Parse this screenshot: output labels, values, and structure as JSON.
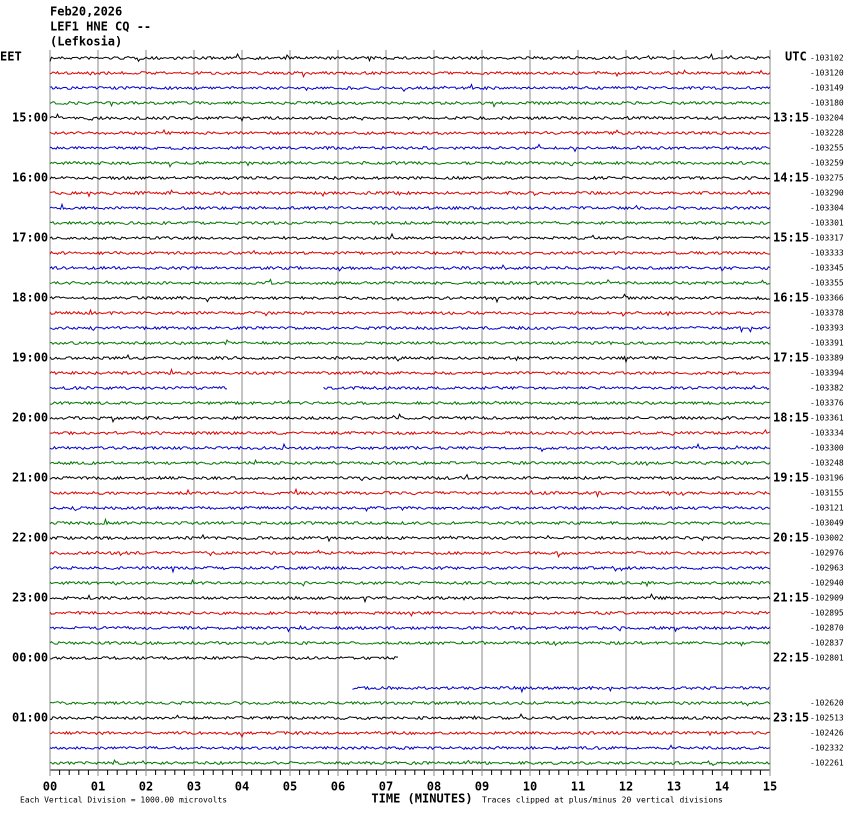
{
  "header": {
    "date": "Feb20,2026",
    "station": "LEF1 HNE CQ --",
    "location": "(Lefkosia)"
  },
  "left_axis_title": "EET",
  "right_axis_title": "UTC",
  "rows": [
    {
      "eet": null,
      "utc": null,
      "offset": -103102
    },
    {
      "eet": null,
      "utc": null,
      "offset": -103120
    },
    {
      "eet": null,
      "utc": null,
      "offset": -103149
    },
    {
      "eet": null,
      "utc": null,
      "offset": -103180
    },
    {
      "eet": "15:00",
      "utc": "13:15",
      "offset": -103204
    },
    {
      "eet": null,
      "utc": null,
      "offset": -103228
    },
    {
      "eet": null,
      "utc": null,
      "offset": -103255
    },
    {
      "eet": null,
      "utc": null,
      "offset": -103259
    },
    {
      "eet": "16:00",
      "utc": "14:15",
      "offset": -103275
    },
    {
      "eet": null,
      "utc": null,
      "offset": -103290
    },
    {
      "eet": null,
      "utc": null,
      "offset": -103304
    },
    {
      "eet": null,
      "utc": null,
      "offset": -103301
    },
    {
      "eet": "17:00",
      "utc": "15:15",
      "offset": -103317
    },
    {
      "eet": null,
      "utc": null,
      "offset": -103333
    },
    {
      "eet": null,
      "utc": null,
      "offset": -103345
    },
    {
      "eet": null,
      "utc": null,
      "offset": -103355
    },
    {
      "eet": "18:00",
      "utc": "16:15",
      "offset": -103366
    },
    {
      "eet": null,
      "utc": null,
      "offset": -103378
    },
    {
      "eet": null,
      "utc": null,
      "offset": -103393
    },
    {
      "eet": null,
      "utc": null,
      "offset": -103391
    },
    {
      "eet": "19:00",
      "utc": "17:15",
      "offset": -103389
    },
    {
      "eet": null,
      "utc": null,
      "offset": -103394
    },
    {
      "eet": null,
      "utc": null,
      "offset": -103382
    },
    {
      "eet": null,
      "utc": null,
      "offset": -103376
    },
    {
      "eet": "20:00",
      "utc": "18:15",
      "offset": -103361
    },
    {
      "eet": null,
      "utc": null,
      "offset": -103334
    },
    {
      "eet": null,
      "utc": null,
      "offset": -103300
    },
    {
      "eet": null,
      "utc": null,
      "offset": -103248
    },
    {
      "eet": "21:00",
      "utc": "19:15",
      "offset": -103196
    },
    {
      "eet": null,
      "utc": null,
      "offset": -103155
    },
    {
      "eet": null,
      "utc": null,
      "offset": -103121
    },
    {
      "eet": null,
      "utc": null,
      "offset": -103049
    },
    {
      "eet": "22:00",
      "utc": "20:15",
      "offset": -103002
    },
    {
      "eet": null,
      "utc": null,
      "offset": -102976
    },
    {
      "eet": null,
      "utc": null,
      "offset": -102963
    },
    {
      "eet": null,
      "utc": null,
      "offset": -102940
    },
    {
      "eet": "23:00",
      "utc": "21:15",
      "offset": -102909
    },
    {
      "eet": null,
      "utc": null,
      "offset": -102895
    },
    {
      "eet": null,
      "utc": null,
      "offset": -102870
    },
    {
      "eet": null,
      "utc": null,
      "offset": -102837
    },
    {
      "eet": "00:00",
      "utc": "22:15",
      "offset": -102801
    },
    {
      "eet": null,
      "utc": null,
      "offset": null
    },
    {
      "eet": null,
      "utc": null,
      "offset": null
    },
    {
      "eet": null,
      "utc": null,
      "offset": -102620
    },
    {
      "eet": "01:00",
      "utc": "23:15",
      "offset": -102513
    },
    {
      "eet": null,
      "utc": null,
      "offset": -102426
    },
    {
      "eet": null,
      "utc": null,
      "offset": -102332
    },
    {
      "eet": null,
      "utc": null,
      "offset": -102261
    }
  ],
  "x_ticks": [
    "00",
    "01",
    "02",
    "03",
    "04",
    "05",
    "06",
    "07",
    "08",
    "09",
    "10",
    "11",
    "12",
    "13",
    "14",
    "15"
  ],
  "x_axis_title": "TIME (MINUTES)",
  "scale_note": "Each Vertical Division = 1000.00 microvolts",
  "clip_note": "Traces clipped at plus/minus 20 vertical divisions"
}
